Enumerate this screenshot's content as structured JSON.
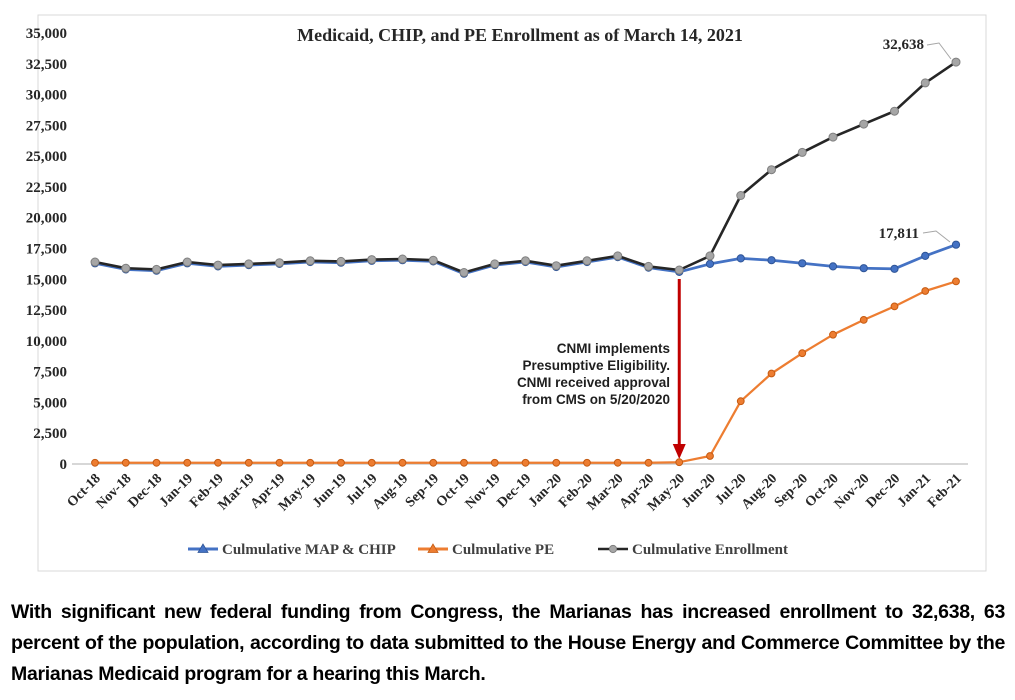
{
  "colors": {
    "map_chip": "#4472C4",
    "map_chip_edge": "#2F5597",
    "pe": "#ED7D31",
    "pe_edge": "#C55A11",
    "enrollment": "#262626",
    "enrollment_marker": "#A6A6A6",
    "enrollment_marker_edge": "#7F7F7F",
    "arrow": "#C00000",
    "frame_border": "#D9D9D9",
    "axis_line": "#BFBFBF",
    "leader_line": "#A6A6A6",
    "tick_text": "#262626",
    "legend_text": "#404040"
  },
  "chart": {
    "title": "Medicaid, CHIP, and PE Enrollment as of March 14, 2021",
    "y_tick_labels": [
      "0",
      "2,500",
      "5,000",
      "7,500",
      "10,000",
      "12,500",
      "15,000",
      "17,500",
      "20,000",
      "22,500",
      "25,000",
      "27,500",
      "30,000",
      "32,500",
      "35,000"
    ],
    "annotation_lines": [
      "CNMI implements",
      "Presumptive Eligibility.",
      "CNMI received approval",
      "from CMS on 5/20/2020"
    ],
    "data_labels": {
      "enrollment_final": "32,638",
      "map_chip_final": "17,811"
    },
    "legend": [
      {
        "label": "Culmulative MAP & CHIP",
        "marker": "triangle"
      },
      {
        "label": "Culmulative PE",
        "marker": "triangle"
      },
      {
        "label": "Culmulative Enrollment",
        "marker": "circle"
      }
    ]
  },
  "chart_data": {
    "type": "line",
    "title": "Medicaid, CHIP, and PE Enrollment as of March 14, 2021",
    "xlabel": "",
    "ylabel": "",
    "ylim": [
      0,
      35000
    ],
    "y_tick_step": 2500,
    "grid": false,
    "legend_position": "bottom",
    "categories": [
      "Oct-18",
      "Nov-18",
      "Dec-18",
      "Jan-19",
      "Feb-19",
      "Mar-19",
      "Apr-19",
      "May-19",
      "Jun-19",
      "Jul-19",
      "Aug-19",
      "Sep-19",
      "Oct-19",
      "Nov-19",
      "Dec-19",
      "Jan-20",
      "Feb-20",
      "Mar-20",
      "Apr-20",
      "May-20",
      "Jun-20",
      "Jul-20",
      "Aug-20",
      "Sep-20",
      "Oct-20",
      "Nov-20",
      "Dec-20",
      "Jan-21",
      "Feb-21"
    ],
    "series": [
      {
        "name": "Culmulative MAP & CHIP",
        "values": [
          16300,
          15800,
          15700,
          16300,
          16050,
          16150,
          16250,
          16400,
          16350,
          16500,
          16550,
          16450,
          15450,
          16150,
          16400,
          16000,
          16400,
          16800,
          15950,
          15600,
          16250,
          16700,
          16550,
          16300,
          16050,
          15900,
          15850,
          16900,
          17811
        ]
      },
      {
        "name": "Culmulative PE",
        "values": [
          100,
          100,
          100,
          100,
          100,
          100,
          100,
          100,
          100,
          100,
          100,
          100,
          100,
          100,
          100,
          100,
          100,
          100,
          100,
          150,
          650,
          5100,
          7350,
          9000,
          10500,
          11700,
          12800,
          14050,
          14827
        ]
      },
      {
        "name": "Culmulative Enrollment",
        "values": [
          16400,
          15900,
          15800,
          16400,
          16150,
          16250,
          16350,
          16500,
          16450,
          16600,
          16650,
          16550,
          15550,
          16250,
          16500,
          16100,
          16500,
          16900,
          16050,
          15750,
          16900,
          21800,
          23900,
          25300,
          26550,
          27600,
          28650,
          30950,
          32638
        ]
      }
    ],
    "annotations": [
      "CNMI implements Presumptive Eligibility. CNMI received approval from CMS on 5/20/2020",
      "32,638",
      "17,811"
    ]
  },
  "caption": "With significant new federal funding from Congress, the Marianas has increased enrollment to 32,638, 63 percent of the population, according to data submitted to the House Energy and Commerce Committee by the Marianas Medicaid program for a hearing this March."
}
